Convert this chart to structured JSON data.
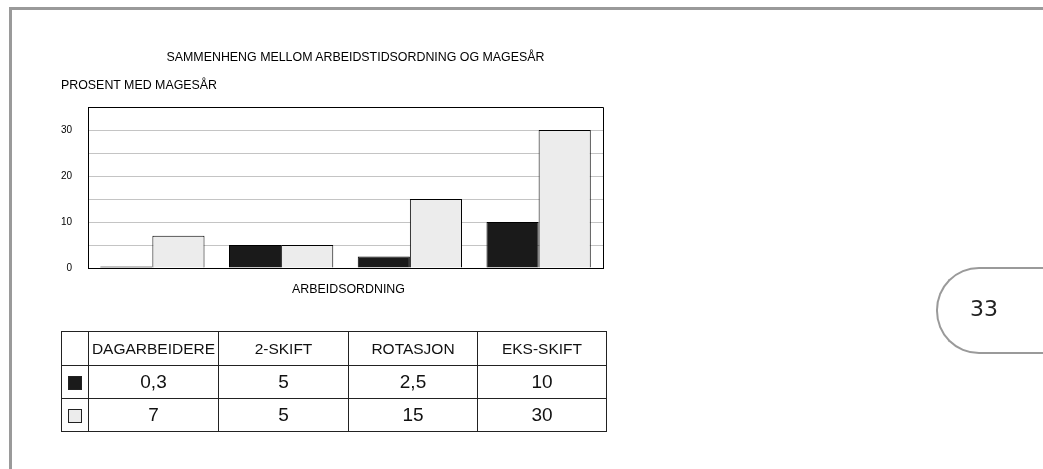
{
  "chart_data": {
    "type": "bar",
    "title": "SAMMENHENG MELLOM ARBEIDSTIDSORDNING OG MAGESÅR",
    "ylabel": "PROSENT MED MAGESÅR",
    "xlabel": "ARBEIDSORDNING",
    "categories": [
      "DAGARBEIDERE",
      "2-SKIFT",
      "ROTASJON",
      "EKS-SKIFT"
    ],
    "series": [
      {
        "color": "#1a1a1a",
        "values": [
          0.3,
          5,
          2.5,
          10
        ],
        "value_labels": [
          "0,3",
          "5",
          "2,5",
          "10"
        ]
      },
      {
        "color": "#ececec",
        "values": [
          7,
          5,
          15,
          30
        ],
        "value_labels": [
          "7",
          "5",
          "15",
          "30"
        ]
      }
    ],
    "ylim": [
      0,
      35
    ],
    "yticks": [
      0,
      {
        "value": 5,
        "label": null
      },
      10,
      {
        "value": 15,
        "label": null
      },
      20,
      {
        "value": 25,
        "label": null
      },
      30
    ],
    "grid": "y",
    "tick_labels": "y",
    "annotations": [
      "33"
    ]
  }
}
